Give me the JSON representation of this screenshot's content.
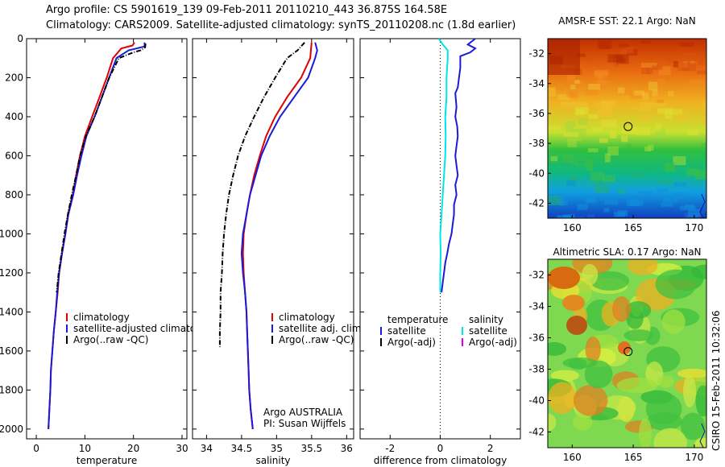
{
  "header": {
    "line1": "Argo profile: CS 5901619_139 09-Feb-2011 20110210_443 36.875S 164.58E",
    "line2": "Climatology: CARS2009. Satellite-adjusted climatology: synTS_20110208.nc (1.8d earlier)"
  },
  "colors": {
    "red": "#e00000",
    "blue": "#1a1ad8",
    "black": "#000000",
    "cyan": "#00e5e5",
    "magenta": "#e000e0"
  },
  "chart_data": [
    {
      "type": "line",
      "xlabel": "temperature",
      "ylabel": "",
      "xlim": [
        -2,
        31
      ],
      "ylim": [
        2050,
        0
      ],
      "xticks": [
        0,
        10,
        20,
        30
      ],
      "yticks": [
        0,
        200,
        400,
        600,
        800,
        1000,
        1200,
        1400,
        1600,
        1800,
        2000
      ],
      "legend": [
        "climatology",
        "satellite-adjusted climatology",
        "Argo(..raw -QC)"
      ],
      "series": [
        {
          "name": "climatology",
          "color": "red",
          "points": [
            [
              20.2,
              20
            ],
            [
              19.8,
              35
            ],
            [
              17.5,
              50
            ],
            [
              15.8,
              100
            ],
            [
              14.5,
              200
            ],
            [
              13,
              300
            ],
            [
              11.5,
              400
            ],
            [
              10,
              500
            ],
            [
              9,
              600
            ],
            [
              8.2,
              700
            ],
            [
              7.5,
              800
            ],
            [
              6.5,
              900
            ],
            [
              6,
              1000
            ],
            [
              5.3,
              1100
            ],
            [
              4.7,
              1200
            ],
            [
              4.4,
              1300
            ],
            [
              4,
              1400
            ],
            [
              3.6,
              1500
            ],
            [
              3.3,
              1600
            ],
            [
              3,
              1700
            ],
            [
              2.9,
              1800
            ],
            [
              2.7,
              1900
            ],
            [
              2.5,
              2000
            ]
          ]
        },
        {
          "name": "satellite-adjusted climatology",
          "color": "blue",
          "points": [
            [
              22.3,
              20
            ],
            [
              22.3,
              40
            ],
            [
              19,
              60
            ],
            [
              16.5,
              100
            ],
            [
              15,
              200
            ],
            [
              13.5,
              300
            ],
            [
              12,
              400
            ],
            [
              10.3,
              500
            ],
            [
              9.3,
              600
            ],
            [
              8.4,
              700
            ],
            [
              7.6,
              800
            ],
            [
              6.6,
              900
            ],
            [
              6,
              1000
            ],
            [
              5.3,
              1100
            ],
            [
              4.7,
              1200
            ],
            [
              4.3,
              1300
            ],
            [
              4,
              1400
            ],
            [
              3.6,
              1500
            ],
            [
              3.3,
              1600
            ],
            [
              3,
              1700
            ],
            [
              2.9,
              1800
            ],
            [
              2.7,
              1900
            ],
            [
              2.5,
              2000
            ]
          ]
        },
        {
          "name": "Argo(..raw -QC)",
          "color": "black",
          "points": [
            [
              22.5,
              25
            ],
            [
              22.4,
              45
            ],
            [
              21.5,
              60
            ],
            [
              20,
              70
            ],
            [
              17,
              100
            ],
            [
              15,
              200
            ],
            [
              13.5,
              300
            ],
            [
              12,
              400
            ],
            [
              10.2,
              500
            ],
            [
              9,
              600
            ],
            [
              8.2,
              700
            ],
            [
              7.3,
              800
            ],
            [
              6.5,
              900
            ],
            [
              5.8,
              1000
            ],
            [
              5.2,
              1100
            ],
            [
              4.6,
              1200
            ],
            [
              4.2,
              1300
            ]
          ]
        }
      ]
    },
    {
      "type": "line",
      "xlabel": "salinity",
      "ylabel": "",
      "xlim": [
        33.8,
        36.1
      ],
      "ylim": [
        2050,
        0
      ],
      "xticks": [
        34,
        34.5,
        35,
        35.5,
        36
      ],
      "legend": [
        "climatology",
        "satellite adj. clim.",
        "Argo(..raw -QC)"
      ],
      "annotation": [
        "Argo AUSTRALIA",
        "PI: Susan Wijffels"
      ],
      "series": [
        {
          "name": "climatology",
          "color": "red",
          "points": [
            [
              35.5,
              20
            ],
            [
              35.48,
              100
            ],
            [
              35.35,
              200
            ],
            [
              35.15,
              300
            ],
            [
              34.98,
              400
            ],
            [
              34.85,
              500
            ],
            [
              34.76,
              600
            ],
            [
              34.68,
              700
            ],
            [
              34.62,
              800
            ],
            [
              34.57,
              900
            ],
            [
              34.53,
              1000
            ],
            [
              34.52,
              1100
            ],
            [
              34.53,
              1200
            ],
            [
              34.55,
              1300
            ],
            [
              34.57,
              1400
            ],
            [
              34.58,
              1500
            ],
            [
              34.59,
              1600
            ],
            [
              34.6,
              1700
            ],
            [
              34.61,
              1800
            ],
            [
              34.63,
              1900
            ],
            [
              34.66,
              2000
            ]
          ]
        },
        {
          "name": "satellite adj. clim.",
          "color": "blue",
          "points": [
            [
              35.55,
              20
            ],
            [
              35.58,
              60
            ],
            [
              35.55,
              100
            ],
            [
              35.45,
              200
            ],
            [
              35.25,
              300
            ],
            [
              35.05,
              400
            ],
            [
              34.9,
              500
            ],
            [
              34.78,
              600
            ],
            [
              34.7,
              700
            ],
            [
              34.62,
              800
            ],
            [
              34.57,
              900
            ],
            [
              34.52,
              1000
            ],
            [
              34.5,
              1100
            ],
            [
              34.52,
              1200
            ],
            [
              34.55,
              1300
            ],
            [
              34.57,
              1400
            ],
            [
              34.58,
              1500
            ],
            [
              34.59,
              1600
            ],
            [
              34.6,
              1700
            ],
            [
              34.61,
              1800
            ],
            [
              34.63,
              1900
            ],
            [
              34.66,
              2000
            ]
          ]
        },
        {
          "name": "Argo(..raw -QC)",
          "color": "black",
          "points": [
            [
              35.4,
              20
            ],
            [
              35.3,
              60
            ],
            [
              35.15,
              100
            ],
            [
              34.98,
              200
            ],
            [
              34.82,
              300
            ],
            [
              34.68,
              400
            ],
            [
              34.55,
              500
            ],
            [
              34.45,
              600
            ],
            [
              34.38,
              700
            ],
            [
              34.32,
              800
            ],
            [
              34.28,
              900
            ],
            [
              34.25,
              1000
            ],
            [
              34.23,
              1100
            ],
            [
              34.22,
              1200
            ],
            [
              34.2,
              1300
            ],
            [
              34.2,
              1400
            ],
            [
              34.19,
              1500
            ],
            [
              34.19,
              1580
            ]
          ]
        }
      ]
    },
    {
      "type": "line",
      "xlabel": "difference from climatology",
      "ylabel": "",
      "xlim": [
        -3.2,
        3.2
      ],
      "ylim": [
        2050,
        0
      ],
      "xticks": [
        -2,
        0,
        2
      ],
      "legend_columns": [
        {
          "heading": "temperature",
          "items": [
            "satellite",
            "Argo(-adj)"
          ]
        },
        {
          "heading": "salinity",
          "items": [
            "satellite",
            "Argo(-adj)"
          ]
        }
      ],
      "series": [
        {
          "name": "temperature satellite",
          "color": "blue",
          "points": [
            [
              1.4,
              0
            ],
            [
              1.1,
              30
            ],
            [
              1.4,
              50
            ],
            [
              1.2,
              70
            ],
            [
              0.8,
              90
            ],
            [
              0.8,
              150
            ],
            [
              0.75,
              200
            ],
            [
              0.7,
              250
            ],
            [
              0.6,
              280
            ],
            [
              0.65,
              350
            ],
            [
              0.6,
              400
            ],
            [
              0.68,
              450
            ],
            [
              0.7,
              500
            ],
            [
              0.65,
              550
            ],
            [
              0.6,
              600
            ],
            [
              0.65,
              650
            ],
            [
              0.7,
              700
            ],
            [
              0.6,
              750
            ],
            [
              0.65,
              800
            ],
            [
              0.55,
              850
            ],
            [
              0.55,
              900
            ],
            [
              0.5,
              950
            ],
            [
              0.45,
              1000
            ],
            [
              0.35,
              1050
            ],
            [
              0.28,
              1100
            ],
            [
              0.2,
              1150
            ],
            [
              0.15,
              1200
            ],
            [
              0.1,
              1250
            ],
            [
              0.05,
              1300
            ]
          ]
        },
        {
          "name": "salinity satellite",
          "color": "cyan",
          "points": [
            [
              -0.05,
              0
            ],
            [
              0.1,
              30
            ],
            [
              0.3,
              60
            ],
            [
              0.3,
              100
            ],
            [
              0.25,
              200
            ],
            [
              0.25,
              300
            ],
            [
              0.2,
              400
            ],
            [
              0.22,
              500
            ],
            [
              0.2,
              600
            ],
            [
              0.15,
              700
            ],
            [
              0.1,
              800
            ],
            [
              0.05,
              900
            ],
            [
              0.0,
              1000
            ],
            [
              0.02,
              1100
            ],
            [
              0.0,
              1200
            ],
            [
              0.0,
              1300
            ]
          ]
        }
      ]
    }
  ],
  "maps": [
    {
      "title": "AMSR-E SST: 22.1 Argo: NaN",
      "xticks": [
        160,
        165,
        170
      ],
      "yticks": [
        -32,
        -34,
        -36,
        -38,
        -40,
        -42
      ],
      "lon_range": [
        158,
        171
      ],
      "lat_range": [
        -43,
        -31
      ],
      "float_position": [
        164.58,
        -36.875
      ]
    },
    {
      "title": "Altimetric SLA: 0.17 Argo: NaN",
      "xticks": [
        160,
        165,
        170
      ],
      "yticks": [
        -32,
        -34,
        -36,
        -38,
        -40,
        -42
      ],
      "lon_range": [
        158,
        171
      ],
      "lat_range": [
        -43,
        -31
      ],
      "float_position": [
        164.58,
        -36.875
      ]
    }
  ],
  "stamp": "CSIRO 15-Feb-2011 10:32:06"
}
